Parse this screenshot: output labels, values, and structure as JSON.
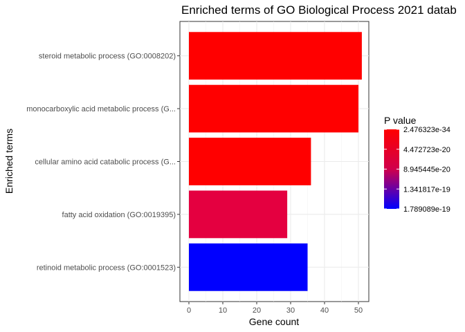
{
  "chart_data": {
    "type": "bar",
    "orientation": "horizontal",
    "title": "Enriched terms of GO Biological Process 2021 datab",
    "xlabel": "Gene count",
    "ylabel": "Enriched terms",
    "xlim": [
      0,
      53
    ],
    "xticks": [
      0,
      10,
      20,
      30,
      40,
      50
    ],
    "grid": true,
    "categories": [
      "steroid metabolic process (GO:0008202)",
      "monocarboxylic acid metabolic process (G...",
      "cellular amino acid catabolic process (G...",
      "fatty acid oxidation (GO:0019395)",
      "retinoid metabolic process (GO:0001523)"
    ],
    "values": [
      51,
      50,
      36,
      29,
      35
    ],
    "bar_colors": [
      "#ff0000",
      "#ff0000",
      "#ff0000",
      "#e40040",
      "#0000ff"
    ],
    "legend": {
      "title": "P value",
      "position": "right",
      "gradient_top": "#ff0000",
      "gradient_bottom": "#0000ff",
      "labels": [
        "2.476323e-34",
        "4.472723e-20",
        "8.945445e-20",
        "1.341817e-19",
        "1.789089e-19"
      ]
    }
  }
}
